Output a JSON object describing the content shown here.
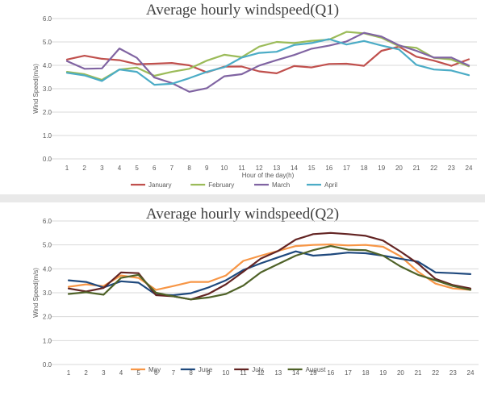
{
  "chart_data": [
    {
      "type": "line",
      "title": "Average hourly windspeed(Q1)",
      "xlabel": "Hour of the day(h)",
      "ylabel": "Wind Speed(m/s)",
      "ylim": [
        0,
        6
      ],
      "yticks": [
        "0.0",
        "1.0",
        "2.0",
        "3.0",
        "4.0",
        "5.0",
        "6.0"
      ],
      "grid": true,
      "legend_position": "bottom",
      "categories": [
        "1",
        "2",
        "3",
        "4",
        "5",
        "6",
        "7",
        "8",
        "9",
        "10",
        "11",
        "12",
        "13",
        "14",
        "15",
        "16",
        "17",
        "18",
        "19",
        "20",
        "21",
        "22",
        "23",
        "24"
      ],
      "series": [
        {
          "name": "January",
          "color": "#c0504d",
          "values": [
            4.25,
            4.41,
            4.28,
            4.22,
            4.05,
            4.07,
            4.1,
            4.0,
            3.7,
            3.94,
            3.95,
            3.74,
            3.66,
            3.97,
            3.91,
            4.06,
            4.07,
            3.98,
            4.62,
            4.8,
            4.37,
            4.2,
            3.98,
            4.26
          ]
        },
        {
          "name": "February",
          "color": "#9bbb59",
          "values": [
            3.72,
            3.62,
            3.38,
            3.82,
            3.9,
            3.55,
            3.72,
            3.85,
            4.2,
            4.45,
            4.35,
            4.8,
            5.0,
            4.95,
            5.05,
            5.1,
            5.43,
            5.37,
            5.18,
            4.82,
            4.75,
            4.32,
            4.25,
            3.96
          ]
        },
        {
          "name": "March",
          "color": "#8064a2",
          "values": [
            4.18,
            3.85,
            3.87,
            4.72,
            4.32,
            3.48,
            3.24,
            2.87,
            3.02,
            3.53,
            3.62,
            3.99,
            4.22,
            4.44,
            4.71,
            4.84,
            5.02,
            5.39,
            5.23,
            4.86,
            4.62,
            4.33,
            4.33,
            3.99
          ]
        },
        {
          "name": "April",
          "color": "#4bacc6",
          "values": [
            3.68,
            3.57,
            3.33,
            3.82,
            3.72,
            3.17,
            3.21,
            3.45,
            3.72,
            3.92,
            4.33,
            4.53,
            4.58,
            4.87,
            4.95,
            5.12,
            4.89,
            5.04,
            4.85,
            4.68,
            4.02,
            3.82,
            3.78,
            3.58
          ]
        }
      ]
    },
    {
      "type": "line",
      "title": "Average hourly windspeed(Q2)",
      "xlabel": "",
      "ylabel": "Wind Speed(m/s)",
      "ylim": [
        0,
        6
      ],
      "yticks": [
        "0.0",
        "1.0",
        "2.0",
        "3.0",
        "4.0",
        "5.0",
        "6.0"
      ],
      "grid": true,
      "legend_position": "bottom",
      "categories": [
        "1",
        "2",
        "3",
        "4",
        "5",
        "6",
        "7",
        "8",
        "9",
        "10",
        "11",
        "12",
        "13",
        "14",
        "15",
        "16",
        "17",
        "18",
        "19",
        "20",
        "21",
        "22",
        "23",
        "24"
      ],
      "series": [
        {
          "name": "May",
          "color": "#f79646",
          "values": [
            3.25,
            3.35,
            3.28,
            3.72,
            3.62,
            3.12,
            3.28,
            3.45,
            3.45,
            3.72,
            4.33,
            4.55,
            4.75,
            4.95,
            5.0,
            5.02,
            4.98,
            5.0,
            4.92,
            4.52,
            3.88,
            3.38,
            3.18,
            3.12
          ]
        },
        {
          "name": "June",
          "color": "#1f497d",
          "values": [
            3.52,
            3.45,
            3.22,
            3.48,
            3.42,
            2.92,
            2.9,
            2.98,
            3.22,
            3.52,
            3.95,
            4.23,
            4.48,
            4.73,
            4.55,
            4.6,
            4.68,
            4.65,
            4.55,
            4.42,
            4.3,
            3.85,
            3.82,
            3.78
          ]
        },
        {
          "name": "July",
          "color": "#632423",
          "values": [
            3.18,
            3.05,
            3.2,
            3.85,
            3.82,
            2.9,
            2.85,
            2.72,
            2.95,
            3.35,
            3.88,
            4.43,
            4.75,
            5.22,
            5.45,
            5.5,
            5.45,
            5.38,
            5.18,
            4.72,
            4.22,
            3.58,
            3.32,
            3.18
          ]
        },
        {
          "name": "August",
          "color": "#4f6228",
          "values": [
            2.95,
            3.02,
            2.92,
            3.62,
            3.75,
            3.0,
            2.85,
            2.72,
            2.8,
            2.95,
            3.3,
            3.85,
            4.2,
            4.55,
            4.78,
            4.95,
            4.8,
            4.78,
            4.55,
            4.1,
            3.75,
            3.52,
            3.28,
            3.12
          ]
        }
      ]
    }
  ]
}
